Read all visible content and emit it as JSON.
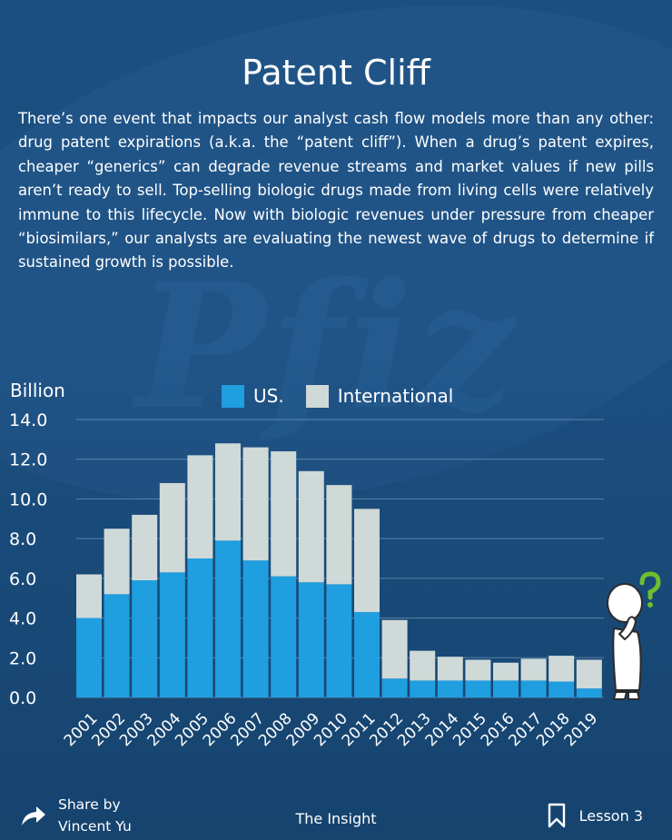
{
  "header": {
    "title": "Patent Cliff",
    "intro": "There’s one event that impacts our analyst cash flow models more than any other: drug patent expirations (a.k.a. the “patent cliff”). When a drug’s patent expires, cheaper “generics” can degrade revenue streams and market values if new pills aren’t ready to sell. Top-selling biologic drugs made from living cells were relatively immune to this lifecycle. Now with biologic revenues under pressure from cheaper “biosimilars,” our analysts are evaluating the newest wave of drugs to determine if sustained growth is possible."
  },
  "colors": {
    "background": "#1b4f80",
    "us": "#1f9ee0",
    "international": "#cfd9d8",
    "question_mark": "#6fbf2e"
  },
  "chart_data": {
    "type": "bar",
    "stacked": true,
    "ylabel": "Billion",
    "ylim": [
      0,
      14
    ],
    "yticks": [
      "0.0",
      "2.0",
      "4.0",
      "6.0",
      "8.0",
      "10.0",
      "12.0",
      "14.0"
    ],
    "grid": true,
    "legend_position": "top",
    "categories": [
      "2001",
      "2002",
      "2003",
      "2004",
      "2005",
      "2006",
      "2007",
      "2008",
      "2009",
      "2010",
      "2011",
      "2012",
      "2013",
      "2014",
      "2015",
      "2016",
      "2017",
      "2018",
      "2019"
    ],
    "series": [
      {
        "name": "US.",
        "values": [
          4.0,
          5.2,
          5.9,
          6.3,
          7.0,
          7.9,
          6.9,
          6.1,
          5.8,
          5.7,
          4.3,
          0.95,
          0.85,
          0.85,
          0.85,
          0.85,
          0.85,
          0.8,
          0.45
        ]
      },
      {
        "name": "International",
        "values": [
          2.2,
          3.3,
          3.3,
          4.5,
          5.2,
          4.9,
          5.7,
          6.3,
          5.6,
          5.0,
          5.2,
          2.95,
          1.5,
          1.2,
          1.05,
          0.9,
          1.1,
          1.3,
          1.45
        ]
      }
    ]
  },
  "footer": {
    "share_line1": "Share by",
    "share_line2": "Vincent Yu",
    "center": "The Insight",
    "lesson": "Lesson 3",
    "share_icon": "share-arrow-icon",
    "lesson_icon": "bookmark-icon"
  }
}
